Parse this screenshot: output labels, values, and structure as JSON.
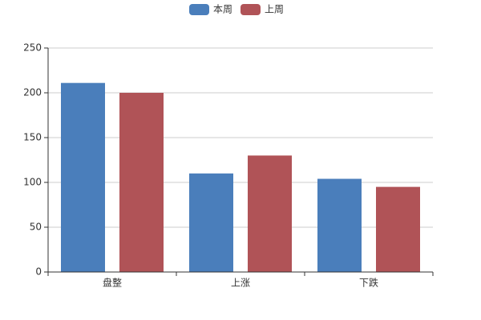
{
  "chart_data": {
    "type": "bar",
    "categories": [
      "盘整",
      "上涨",
      "下跌"
    ],
    "series": [
      {
        "name": "本周",
        "color": "#4a7ebb",
        "values": [
          211,
          110,
          104
        ]
      },
      {
        "name": "上周",
        "color": "#b05357",
        "values": [
          200,
          130,
          95
        ]
      }
    ],
    "ylim": [
      0,
      250
    ],
    "yticks": [
      0,
      50,
      100,
      150,
      200,
      250
    ],
    "grid": true,
    "legend": "top"
  }
}
